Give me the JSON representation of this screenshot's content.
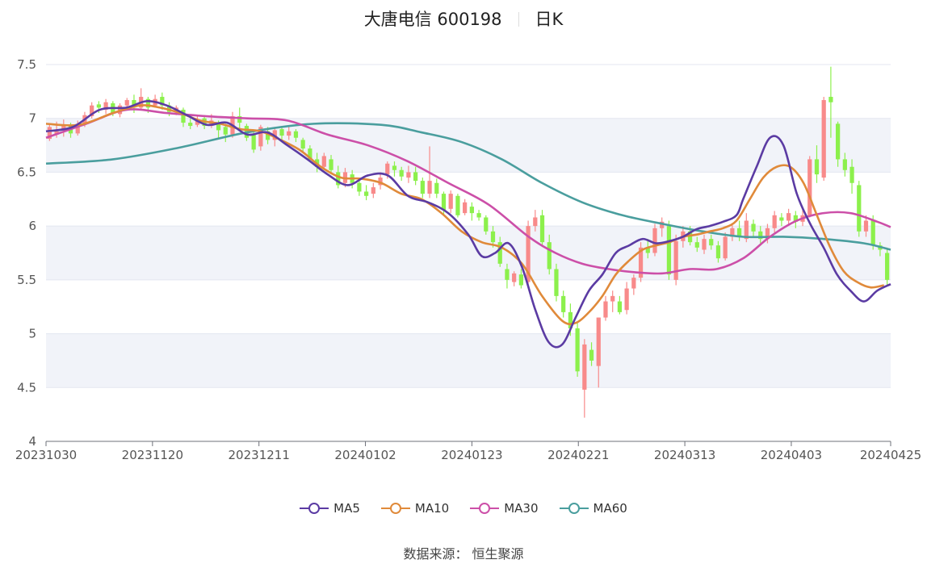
{
  "header": {
    "stock_name_code": "大唐电信 600198",
    "period": "日K"
  },
  "source": {
    "label": "数据来源：",
    "value": "恒生聚源"
  },
  "legend": [
    {
      "name": "MA5",
      "color": "#5b3ba3"
    },
    {
      "name": "MA10",
      "color": "#e08a3a"
    },
    {
      "name": "MA30",
      "color": "#cc4fa8"
    },
    {
      "name": "MA60",
      "color": "#4a9e9e"
    }
  ],
  "colors": {
    "up": "#f88a8a",
    "down": "#8cf04c",
    "band": "#f1f3f9",
    "grid": "#e3e6f0"
  },
  "chart_data": {
    "type": "candlestick",
    "title": "大唐电信 600198",
    "period": "日K",
    "ylim": [
      4,
      7.5
    ],
    "y_ticks": [
      "4",
      "4.5",
      "5",
      "5.5",
      "6",
      "6.5",
      "7",
      "7.5"
    ],
    "x_tick_labels": [
      "20231030",
      "20231120",
      "20231211",
      "20240102",
      "20240123",
      "20240221",
      "20240313",
      "20240403",
      "20240425"
    ],
    "x_tick_index": [
      0,
      15,
      30,
      45,
      60,
      75,
      90,
      105,
      119
    ],
    "ohlc_note": "[open, close, low, high] per trading day, 20231030 to 20240425",
    "candles": [
      [
        6.81,
        6.92,
        6.79,
        6.95
      ],
      [
        6.85,
        6.88,
        6.82,
        6.97
      ],
      [
        6.9,
        6.94,
        6.83,
        6.99
      ],
      [
        6.93,
        6.86,
        6.82,
        6.96
      ],
      [
        6.86,
        6.95,
        6.84,
        6.98
      ],
      [
        6.95,
        7.03,
        6.92,
        7.06
      ],
      [
        7.02,
        7.12,
        7.0,
        7.15
      ],
      [
        7.13,
        7.1,
        7.05,
        7.16
      ],
      [
        7.08,
        7.15,
        7.04,
        7.18
      ],
      [
        7.14,
        7.05,
        7.02,
        7.16
      ],
      [
        7.04,
        7.12,
        7.01,
        7.14
      ],
      [
        7.12,
        7.17,
        7.08,
        7.19
      ],
      [
        7.17,
        7.1,
        7.05,
        7.22
      ],
      [
        7.1,
        7.2,
        7.08,
        7.28
      ],
      [
        7.18,
        7.1,
        7.05,
        7.2
      ],
      [
        7.12,
        7.18,
        7.1,
        7.22
      ],
      [
        7.2,
        7.12,
        7.08,
        7.24
      ],
      [
        7.12,
        7.06,
        7.02,
        7.15
      ],
      [
        7.06,
        7.1,
        7.03,
        7.12
      ],
      [
        7.08,
        6.96,
        6.92,
        7.1
      ],
      [
        6.96,
        6.93,
        6.9,
        7.0
      ],
      [
        6.94,
        6.99,
        6.92,
        7.02
      ],
      [
        7.0,
        6.93,
        6.9,
        7.02
      ],
      [
        6.93,
        6.98,
        6.91,
        7.04
      ],
      [
        6.95,
        6.89,
        6.82,
        6.98
      ],
      [
        6.92,
        6.85,
        6.78,
        6.95
      ],
      [
        6.85,
        7.02,
        6.82,
        7.06
      ],
      [
        7.02,
        6.96,
        6.9,
        7.1
      ],
      [
        6.93,
        6.82,
        6.79,
        6.95
      ],
      [
        6.85,
        6.71,
        6.68,
        6.88
      ],
      [
        6.74,
        6.92,
        6.7,
        6.94
      ],
      [
        6.88,
        6.8,
        6.76,
        6.92
      ],
      [
        6.8,
        6.89,
        6.74,
        6.92
      ],
      [
        6.9,
        6.84,
        6.8,
        6.93
      ],
      [
        6.84,
        6.88,
        6.8,
        6.92
      ],
      [
        6.88,
        6.82,
        6.78,
        6.9
      ],
      [
        6.8,
        6.72,
        6.68,
        6.82
      ],
      [
        6.72,
        6.62,
        6.6,
        6.75
      ],
      [
        6.62,
        6.55,
        6.5,
        6.68
      ],
      [
        6.55,
        6.65,
        6.52,
        6.68
      ],
      [
        6.62,
        6.52,
        6.48,
        6.66
      ],
      [
        6.5,
        6.38,
        6.35,
        6.56
      ],
      [
        6.4,
        6.5,
        6.36,
        6.54
      ],
      [
        6.48,
        6.4,
        6.35,
        6.52
      ],
      [
        6.4,
        6.32,
        6.28,
        6.45
      ],
      [
        6.32,
        6.28,
        6.24,
        6.38
      ],
      [
        6.3,
        6.36,
        6.26,
        6.4
      ],
      [
        6.38,
        6.45,
        6.34,
        6.5
      ],
      [
        6.48,
        6.58,
        6.44,
        6.6
      ],
      [
        6.56,
        6.52,
        6.46,
        6.6
      ],
      [
        6.52,
        6.46,
        6.42,
        6.55
      ],
      [
        6.45,
        6.5,
        6.4,
        6.56
      ],
      [
        6.5,
        6.42,
        6.38,
        6.55
      ],
      [
        6.42,
        6.3,
        6.26,
        6.45
      ],
      [
        6.3,
        6.42,
        6.26,
        6.74
      ],
      [
        6.4,
        6.3,
        6.26,
        6.44
      ],
      [
        6.3,
        6.15,
        6.1,
        6.32
      ],
      [
        6.16,
        6.3,
        6.12,
        6.33
      ],
      [
        6.28,
        6.1,
        6.08,
        6.3
      ],
      [
        6.12,
        6.22,
        6.1,
        6.25
      ],
      [
        6.18,
        6.12,
        6.05,
        6.22
      ],
      [
        6.12,
        6.08,
        6.05,
        6.15
      ],
      [
        6.08,
        5.95,
        5.92,
        6.1
      ],
      [
        5.95,
        5.85,
        5.8,
        6.0
      ],
      [
        5.85,
        5.65,
        5.62,
        5.9
      ],
      [
        5.6,
        5.5,
        5.42,
        5.65
      ],
      [
        5.48,
        5.56,
        5.44,
        5.58
      ],
      [
        5.55,
        5.45,
        5.42,
        5.6
      ],
      [
        5.48,
        6.0,
        5.45,
        6.05
      ],
      [
        6.0,
        6.08,
        5.95,
        6.15
      ],
      [
        6.1,
        5.85,
        5.82,
        6.15
      ],
      [
        5.85,
        5.6,
        5.55,
        5.92
      ],
      [
        5.6,
        5.35,
        5.3,
        5.65
      ],
      [
        5.35,
        5.2,
        5.15,
        5.4
      ],
      [
        5.2,
        5.05,
        4.98,
        5.28
      ],
      [
        5.05,
        4.65,
        4.6,
        5.1
      ],
      [
        4.48,
        4.9,
        4.22,
        4.95
      ],
      [
        4.85,
        4.75,
        4.7,
        4.92
      ],
      [
        4.7,
        5.15,
        4.5,
        5.15
      ],
      [
        5.15,
        5.3,
        5.12,
        5.35
      ],
      [
        5.3,
        5.35,
        5.2,
        5.4
      ],
      [
        5.3,
        5.2,
        5.18,
        5.35
      ],
      [
        5.22,
        5.42,
        5.18,
        5.48
      ],
      [
        5.42,
        5.52,
        5.36,
        5.55
      ],
      [
        5.52,
        5.8,
        5.48,
        5.85
      ],
      [
        5.8,
        5.75,
        5.7,
        5.88
      ],
      [
        5.75,
        5.98,
        5.72,
        6.02
      ],
      [
        5.98,
        6.04,
        5.9,
        6.08
      ],
      [
        6.0,
        5.55,
        5.5,
        6.05
      ],
      [
        5.5,
        5.86,
        5.45,
        5.92
      ],
      [
        5.86,
        5.95,
        5.8,
        6.0
      ],
      [
        5.95,
        5.85,
        5.82,
        6.0
      ],
      [
        5.85,
        5.8,
        5.76,
        5.9
      ],
      [
        5.78,
        5.88,
        5.74,
        5.92
      ],
      [
        5.88,
        5.82,
        5.78,
        5.92
      ],
      [
        5.82,
        5.7,
        5.66,
        5.86
      ],
      [
        5.7,
        5.9,
        5.68,
        5.94
      ],
      [
        5.9,
        5.98,
        5.86,
        6.02
      ],
      [
        5.98,
        5.9,
        5.86,
        6.05
      ],
      [
        5.88,
        6.05,
        5.85,
        6.12
      ],
      [
        6.02,
        5.95,
        5.9,
        6.06
      ],
      [
        5.95,
        5.88,
        5.84,
        6.0
      ],
      [
        5.88,
        5.98,
        5.84,
        6.02
      ],
      [
        5.98,
        6.1,
        5.94,
        6.14
      ],
      [
        6.08,
        6.05,
        6.0,
        6.12
      ],
      [
        6.05,
        6.12,
        6.0,
        6.16
      ],
      [
        6.1,
        6.04,
        5.98,
        6.14
      ],
      [
        6.04,
        6.1,
        6.0,
        6.18
      ],
      [
        6.1,
        6.62,
        6.08,
        6.65
      ],
      [
        6.62,
        6.48,
        6.4,
        6.75
      ],
      [
        6.45,
        7.17,
        6.42,
        7.2
      ],
      [
        7.2,
        7.15,
        6.82,
        7.48
      ],
      [
        6.95,
        6.62,
        6.55,
        6.97
      ],
      [
        6.62,
        6.52,
        6.46,
        6.68
      ],
      [
        6.55,
        6.4,
        6.3,
        6.62
      ],
      [
        6.38,
        5.95,
        5.9,
        6.42
      ],
      [
        5.95,
        6.05,
        5.9,
        6.1
      ],
      [
        6.05,
        5.82,
        5.78,
        6.1
      ],
      [
        5.82,
        5.78,
        5.72,
        5.85
      ],
      [
        5.75,
        5.5,
        5.45,
        5.8
      ]
    ],
    "series": [
      {
        "name": "MA5",
        "values_note": "smoothed key points [index, value]",
        "points": [
          [
            0,
            6.88
          ],
          [
            4,
            6.92
          ],
          [
            8,
            7.08
          ],
          [
            12,
            7.1
          ],
          [
            15,
            7.16
          ],
          [
            18,
            7.12
          ],
          [
            21,
            7.03
          ],
          [
            24,
            6.94
          ],
          [
            27,
            6.96
          ],
          [
            30,
            6.85
          ],
          [
            33,
            6.87
          ],
          [
            36,
            6.75
          ],
          [
            39,
            6.62
          ],
          [
            42,
            6.48
          ],
          [
            45,
            6.38
          ],
          [
            48,
            6.47
          ],
          [
            51,
            6.47
          ],
          [
            54,
            6.28
          ],
          [
            57,
            6.22
          ],
          [
            60,
            6.12
          ],
          [
            63,
            5.92
          ],
          [
            65,
            5.72
          ],
          [
            67,
            5.75
          ],
          [
            69,
            5.84
          ],
          [
            71,
            5.62
          ],
          [
            73,
            5.22
          ],
          [
            75,
            4.92
          ],
          [
            77,
            4.9
          ],
          [
            79,
            5.15
          ],
          [
            81,
            5.4
          ],
          [
            83,
            5.55
          ],
          [
            85,
            5.75
          ],
          [
            87,
            5.82
          ],
          [
            89,
            5.88
          ],
          [
            91,
            5.84
          ],
          [
            93,
            5.86
          ],
          [
            95,
            5.9
          ],
          [
            97,
            5.97
          ],
          [
            99,
            6.0
          ],
          [
            101,
            6.04
          ],
          [
            103,
            6.1
          ],
          [
            104,
            6.25
          ],
          [
            106,
            6.55
          ],
          [
            108,
            6.82
          ],
          [
            110,
            6.75
          ],
          [
            112,
            6.3
          ],
          [
            114,
            6.02
          ],
          [
            116,
            5.8
          ],
          [
            118,
            5.55
          ],
          [
            120,
            5.4
          ],
          [
            122,
            5.3
          ],
          [
            124,
            5.4
          ],
          [
            126,
            5.46
          ]
        ]
      },
      {
        "name": "MA10",
        "points": [
          [
            0,
            6.95
          ],
          [
            5,
            6.94
          ],
          [
            10,
            7.05
          ],
          [
            14,
            7.12
          ],
          [
            17,
            7.1
          ],
          [
            20,
            7.05
          ],
          [
            23,
            6.98
          ],
          [
            26,
            6.95
          ],
          [
            29,
            6.9
          ],
          [
            32,
            6.88
          ],
          [
            35,
            6.8
          ],
          [
            38,
            6.7
          ],
          [
            41,
            6.55
          ],
          [
            44,
            6.45
          ],
          [
            47,
            6.44
          ],
          [
            50,
            6.4
          ],
          [
            53,
            6.3
          ],
          [
            56,
            6.25
          ],
          [
            59,
            6.12
          ],
          [
            62,
            5.95
          ],
          [
            65,
            5.85
          ],
          [
            68,
            5.8
          ],
          [
            71,
            5.65
          ],
          [
            74,
            5.35
          ],
          [
            77,
            5.12
          ],
          [
            79,
            5.1
          ],
          [
            81,
            5.2
          ],
          [
            83,
            5.35
          ],
          [
            85,
            5.55
          ],
          [
            87,
            5.68
          ],
          [
            89,
            5.78
          ],
          [
            91,
            5.82
          ],
          [
            93,
            5.85
          ],
          [
            95,
            5.9
          ],
          [
            97,
            5.92
          ],
          [
            99,
            5.95
          ],
          [
            101,
            5.98
          ],
          [
            103,
            6.05
          ],
          [
            105,
            6.25
          ],
          [
            107,
            6.45
          ],
          [
            109,
            6.55
          ],
          [
            111,
            6.55
          ],
          [
            113,
            6.4
          ],
          [
            115,
            6.1
          ],
          [
            117,
            5.8
          ],
          [
            119,
            5.58
          ],
          [
            121,
            5.48
          ],
          [
            123,
            5.43
          ],
          [
            125,
            5.45
          ]
        ]
      },
      {
        "name": "MA30",
        "points": [
          [
            0,
            6.82
          ],
          [
            6,
            6.95
          ],
          [
            12,
            7.08
          ],
          [
            18,
            7.05
          ],
          [
            24,
            7.02
          ],
          [
            30,
            7.0
          ],
          [
            36,
            6.98
          ],
          [
            42,
            6.85
          ],
          [
            48,
            6.75
          ],
          [
            54,
            6.6
          ],
          [
            60,
            6.4
          ],
          [
            66,
            6.2
          ],
          [
            72,
            5.9
          ],
          [
            76,
            5.75
          ],
          [
            80,
            5.65
          ],
          [
            84,
            5.6
          ],
          [
            88,
            5.57
          ],
          [
            92,
            5.56
          ],
          [
            96,
            5.6
          ],
          [
            100,
            5.6
          ],
          [
            104,
            5.7
          ],
          [
            108,
            5.9
          ],
          [
            112,
            6.05
          ],
          [
            116,
            6.12
          ],
          [
            120,
            6.12
          ],
          [
            124,
            6.04
          ],
          [
            126,
            5.99
          ]
        ]
      },
      {
        "name": "MA60",
        "points": [
          [
            0,
            6.58
          ],
          [
            10,
            6.62
          ],
          [
            20,
            6.73
          ],
          [
            30,
            6.87
          ],
          [
            40,
            6.95
          ],
          [
            50,
            6.94
          ],
          [
            56,
            6.87
          ],
          [
            62,
            6.78
          ],
          [
            68,
            6.62
          ],
          [
            74,
            6.4
          ],
          [
            80,
            6.22
          ],
          [
            86,
            6.1
          ],
          [
            92,
            6.02
          ],
          [
            98,
            5.95
          ],
          [
            104,
            5.9
          ],
          [
            110,
            5.9
          ],
          [
            116,
            5.88
          ],
          [
            122,
            5.84
          ],
          [
            126,
            5.78
          ]
        ]
      }
    ]
  }
}
